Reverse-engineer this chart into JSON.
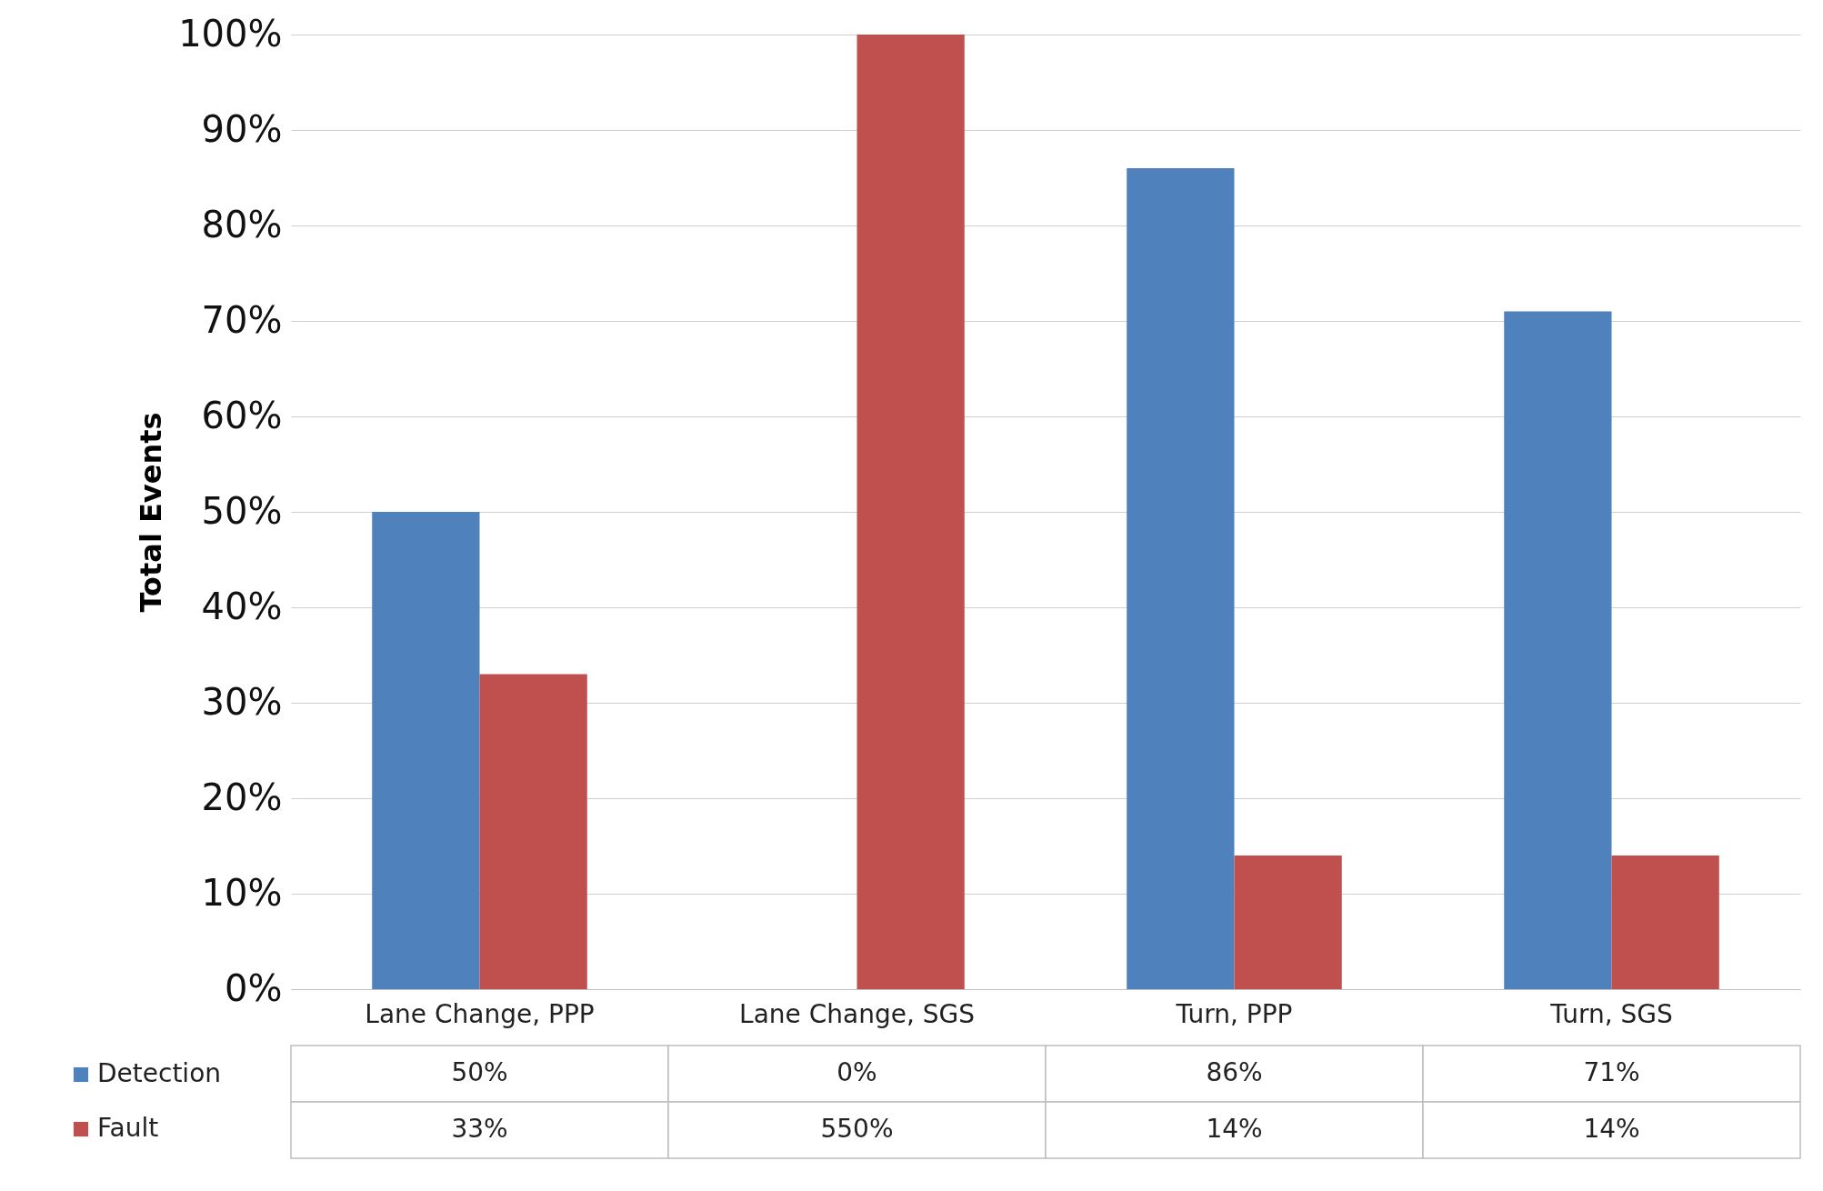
{
  "chart_data": {
    "type": "bar",
    "ylabel": "Total Events",
    "categories": [
      "Lane Change, PPP",
      "Lane Change, SGS",
      "Turn, PPP",
      "Turn, SGS"
    ],
    "series": [
      {
        "name": "Detection",
        "color": "#4f81bd",
        "values": [
          50,
          0,
          86,
          71
        ],
        "value_labels": [
          "50%",
          "0%",
          "86%",
          "71%"
        ]
      },
      {
        "name": "Fault",
        "color": "#c0504d",
        "values": [
          33,
          100,
          14,
          14
        ],
        "value_labels": [
          "33%",
          null,
          "14%",
          "14%"
        ]
      }
    ],
    "ylim": [
      0,
      100
    ],
    "yticks": [
      {
        "value": 0,
        "label": "0%"
      },
      {
        "value": 10,
        "label": "10%"
      },
      {
        "value": 20,
        "label": "20%"
      },
      {
        "value": 30,
        "label": "30%"
      },
      {
        "value": 40,
        "label": "40%"
      },
      {
        "value": 50,
        "label": "50%"
      },
      {
        "value": 60,
        "label": "60%"
      },
      {
        "value": 70,
        "label": "70%"
      },
      {
        "value": 80,
        "label": "80%"
      },
      {
        "value": 90,
        "label": "90%"
      },
      {
        "value": 100,
        "label": "100%"
      }
    ],
    "annotations": [
      "550%"
    ],
    "grid": true,
    "legend": "bottom"
  }
}
